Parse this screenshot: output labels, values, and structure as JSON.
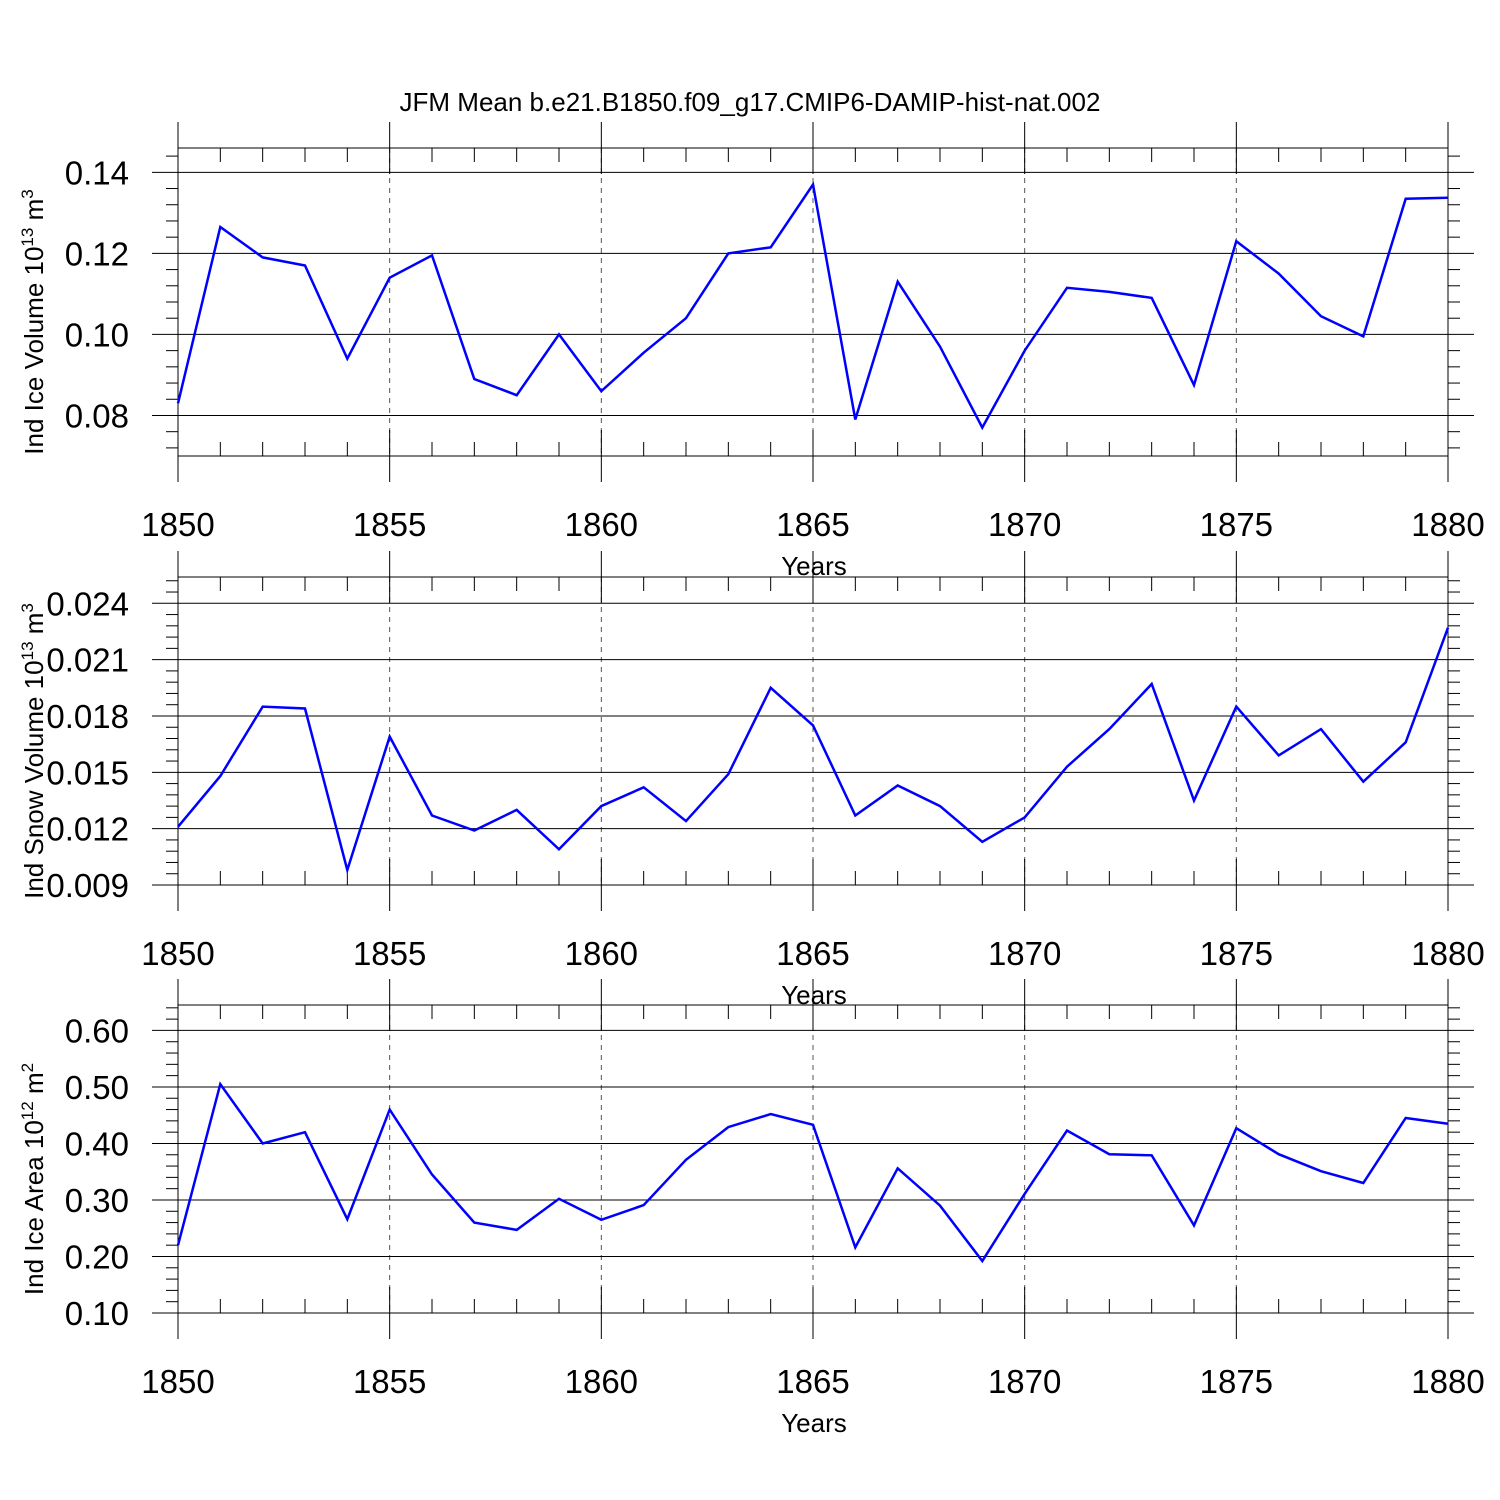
{
  "chart_data": {
    "title": "JFM Mean b.e21.B1850.f09_g17.CMIP6-DAMIP-hist-nat.002",
    "type": "line",
    "line_color": "#0000ff",
    "grid": "vertical dashed lines at major x ticks",
    "panels": [
      {
        "type": "line",
        "xlabel": "Years",
        "ylabel": {
          "prefix": "Ind Ice Volume 10",
          "exp": "13",
          "mid": " m",
          "unit_exp": "3"
        },
        "xlim": [
          1850,
          1880
        ],
        "ylim": [
          0.07,
          0.146
        ],
        "x_ticks": [
          1850,
          1855,
          1860,
          1865,
          1870,
          1875,
          1880
        ],
        "y_ticks": [
          0.08,
          0.1,
          0.12,
          0.14
        ],
        "y_tick_labels": [
          "0.08",
          "0.10",
          "0.12",
          "0.14"
        ],
        "x": [
          1850,
          1851,
          1852,
          1853,
          1854,
          1855,
          1856,
          1857,
          1858,
          1859,
          1860,
          1861,
          1862,
          1863,
          1864,
          1865,
          1866,
          1867,
          1868,
          1869,
          1870,
          1871,
          1872,
          1873,
          1874,
          1875,
          1876,
          1877,
          1878,
          1879,
          1880
        ],
        "values": [
          0.083,
          0.1265,
          0.119,
          0.117,
          0.094,
          0.114,
          0.1195,
          0.089,
          0.085,
          0.1,
          0.086,
          0.0955,
          0.104,
          0.12,
          0.1215,
          0.137,
          0.079,
          0.113,
          0.097,
          0.077,
          0.096,
          0.1115,
          0.1105,
          0.109,
          0.0875,
          0.123,
          0.115,
          0.1045,
          0.0995,
          0.1335,
          0.1337
        ]
      },
      {
        "type": "line",
        "xlabel": "Years",
        "ylabel": {
          "prefix": "Ind Snow Volume 10",
          "exp": "13",
          "mid": " m",
          "unit_exp": "3"
        },
        "xlim": [
          1850,
          1880
        ],
        "ylim": [
          0.009,
          0.0254
        ],
        "x_ticks": [
          1850,
          1855,
          1860,
          1865,
          1870,
          1875,
          1880
        ],
        "y_ticks": [
          0.009,
          0.012,
          0.015,
          0.018,
          0.021,
          0.024
        ],
        "y_tick_labels": [
          "0.009",
          "0.012",
          "0.015",
          "0.018",
          "0.021",
          "0.024"
        ],
        "x": [
          1850,
          1851,
          1852,
          1853,
          1854,
          1855,
          1856,
          1857,
          1858,
          1859,
          1860,
          1861,
          1862,
          1863,
          1864,
          1865,
          1866,
          1867,
          1868,
          1869,
          1870,
          1871,
          1872,
          1873,
          1874,
          1875,
          1876,
          1877,
          1878,
          1879,
          1880
        ],
        "values": [
          0.0121,
          0.0148,
          0.0185,
          0.0184,
          0.0098,
          0.0169,
          0.0127,
          0.0119,
          0.013,
          0.0109,
          0.0132,
          0.0142,
          0.0124,
          0.0149,
          0.0195,
          0.0175,
          0.0127,
          0.0143,
          0.0132,
          0.0113,
          0.0126,
          0.0153,
          0.0173,
          0.0197,
          0.0135,
          0.0185,
          0.0159,
          0.0173,
          0.0145,
          0.0166,
          0.0227
        ]
      },
      {
        "type": "line",
        "xlabel": "Years",
        "ylabel": {
          "prefix": "Ind Ice Area 10",
          "exp": "12",
          "mid": " m",
          "unit_exp": "2"
        },
        "xlim": [
          1850,
          1880
        ],
        "ylim": [
          0.1,
          0.645
        ],
        "x_ticks": [
          1850,
          1855,
          1860,
          1865,
          1870,
          1875,
          1880
        ],
        "y_ticks": [
          0.1,
          0.2,
          0.3,
          0.4,
          0.5,
          0.6
        ],
        "y_tick_labels": [
          "0.10",
          "0.20",
          "0.30",
          "0.40",
          "0.50",
          "0.60"
        ],
        "x": [
          1850,
          1851,
          1852,
          1853,
          1854,
          1855,
          1856,
          1857,
          1858,
          1859,
          1860,
          1861,
          1862,
          1863,
          1864,
          1865,
          1866,
          1867,
          1868,
          1869,
          1870,
          1871,
          1872,
          1873,
          1874,
          1875,
          1876,
          1877,
          1878,
          1879,
          1880
        ],
        "values": [
          0.22,
          0.505,
          0.4,
          0.42,
          0.266,
          0.46,
          0.345,
          0.26,
          0.247,
          0.302,
          0.265,
          0.291,
          0.371,
          0.429,
          0.452,
          0.433,
          0.216,
          0.356,
          0.29,
          0.192,
          0.311,
          0.423,
          0.381,
          0.379,
          0.255,
          0.427,
          0.381,
          0.351,
          0.33,
          0.445,
          0.435
        ]
      }
    ]
  }
}
